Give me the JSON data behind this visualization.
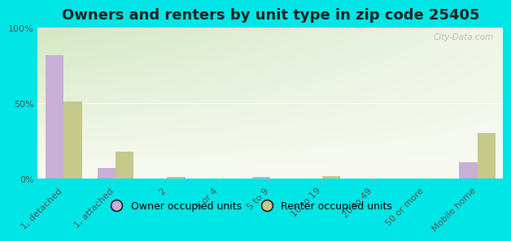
{
  "title": "Owners and renters by unit type in zip code 25405",
  "categories": [
    "1, detached",
    "1, attached",
    "2",
    "3 or 4",
    "5 to 9",
    "10 to 19",
    "20 to 49",
    "50 or more",
    "Mobile home"
  ],
  "owner_values": [
    82,
    7,
    0,
    0,
    1,
    0,
    0,
    0,
    11
  ],
  "renter_values": [
    51,
    18,
    1,
    0,
    0,
    2,
    0,
    0,
    30
  ],
  "owner_color": "#c9aed6",
  "renter_color": "#c5c98a",
  "background_outer": "#00e5e5",
  "background_plot_top_left": "#d4e8c2",
  "background_plot_top_right": "#eef5e8",
  "background_plot_bottom": "#f8faf2",
  "ylim": [
    0,
    100
  ],
  "yticks": [
    0,
    50,
    100
  ],
  "ytick_labels": [
    "0%",
    "50%",
    "100%"
  ],
  "watermark": "City-Data.com",
  "legend_owner": "Owner occupied units",
  "legend_renter": "Renter occupied units",
  "bar_width": 0.35,
  "title_fontsize": 13,
  "tick_fontsize": 8,
  "legend_fontsize": 9
}
